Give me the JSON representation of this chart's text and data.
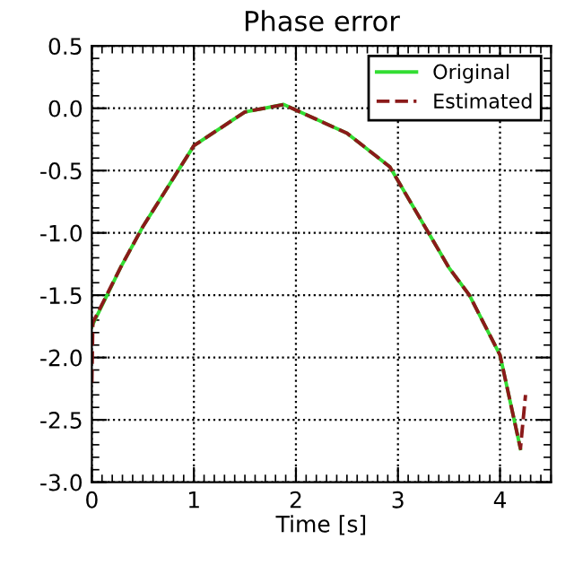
{
  "chart_data": {
    "type": "line",
    "title": "Phase error",
    "xlabel": "Time [s]",
    "xlim": [
      0,
      4.5
    ],
    "xticks": [
      0,
      1,
      2,
      3,
      4
    ],
    "ylim": [
      -3.0,
      0.5
    ],
    "yticks": [
      {
        "value": 0.5,
        "label": "0.5"
      },
      {
        "value": 0.0,
        "label": "0.0"
      },
      {
        "value": -0.5,
        "label": "-0.5"
      },
      {
        "value": -1.0,
        "label": "-1.0"
      },
      {
        "value": -1.5,
        "label": "-1.5"
      },
      {
        "value": -2.0,
        "label": "-2.0"
      },
      {
        "value": -2.5,
        "label": "-2.5"
      },
      {
        "value": -3.0,
        "label": "-3.0"
      }
    ],
    "grid": true,
    "legend": "top right",
    "series": [
      {
        "name": "Original",
        "color": "#33dd33",
        "line_style": "solid",
        "x": [
          0,
          0.28,
          0.5,
          1.0,
          1.5,
          1.88,
          2.5,
          2.92,
          3.5,
          3.7,
          4.0,
          4.2
        ],
        "values": [
          -1.75,
          -1.28,
          -0.95,
          -0.3,
          -0.03,
          0.03,
          -0.2,
          -0.47,
          -1.28,
          -1.5,
          -1.98,
          -2.73
        ]
      },
      {
        "name": "Estimated",
        "color": "#8b1a1a",
        "line_style": "dashed",
        "x": [
          0,
          0.01,
          0.28,
          0.5,
          1.0,
          1.5,
          1.88,
          2.5,
          2.92,
          3.5,
          3.7,
          4.0,
          4.2,
          4.25
        ],
        "values": [
          -2.2,
          -1.72,
          -1.28,
          -0.95,
          -0.3,
          -0.03,
          0.03,
          -0.2,
          -0.47,
          -1.28,
          -1.5,
          -1.98,
          -2.73,
          -2.3
        ]
      }
    ]
  }
}
